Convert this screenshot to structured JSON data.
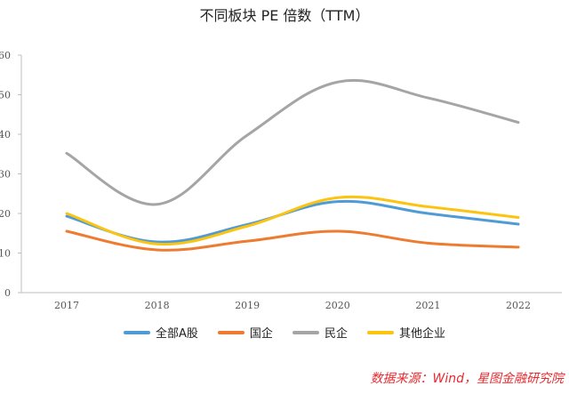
{
  "chart_data": {
    "type": "line",
    "title": "不同板块 PE 倍数（TTM）",
    "x": [
      "2017",
      "2018",
      "2019",
      "2020",
      "2021",
      "2022"
    ],
    "ylim": [
      0,
      60
    ],
    "yticks": [
      0,
      10,
      20,
      30,
      40,
      50,
      60
    ],
    "grid": false,
    "legend": "bottom",
    "series": [
      {
        "name": "全部A股",
        "color": "#4e9bd6",
        "values": [
          19.3,
          12.8,
          17.2,
          23.0,
          20.0,
          17.3
        ]
      },
      {
        "name": "国企",
        "color": "#ee7b30",
        "values": [
          15.5,
          10.8,
          13.0,
          15.5,
          12.5,
          11.5
        ]
      },
      {
        "name": "民企",
        "color": "#a5a5a5",
        "values": [
          35.2,
          22.3,
          39.8,
          53.2,
          49.2,
          43.0
        ]
      },
      {
        "name": "其他企业",
        "color": "#fcc30f",
        "values": [
          20.0,
          12.3,
          16.8,
          24.0,
          21.7,
          19.0
        ]
      }
    ]
  },
  "source_text": "数据来源：Wind，星图金融研究院"
}
